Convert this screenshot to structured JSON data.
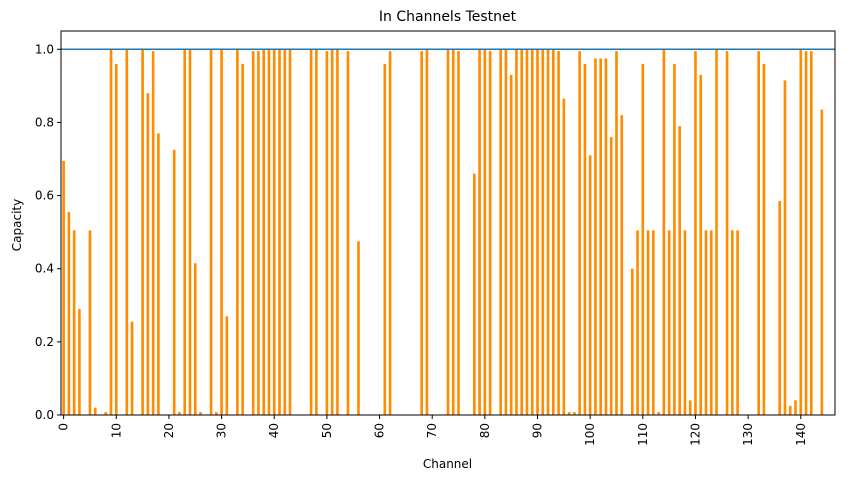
{
  "chart_data": {
    "type": "bar",
    "title": "In Channels Testnet",
    "xlabel": "Channel",
    "ylabel": "Capacity",
    "xlim": [
      0,
      147
    ],
    "ylim": [
      0,
      1.05
    ],
    "xticks": [
      "0",
      "10",
      "20",
      "30",
      "40",
      "50",
      "60",
      "70",
      "80",
      "90",
      "100",
      "110",
      "120",
      "130",
      "140"
    ],
    "yticks": [
      "0.0",
      "0.2",
      "0.4",
      "0.6",
      "0.8",
      "1.0"
    ],
    "hline": 1.0,
    "grid": false,
    "legend": "none",
    "colors": {
      "bars": "#ff8c00",
      "hline": "#1f77b4",
      "axes": "#000000"
    },
    "values": [
      0.695,
      0.555,
      0.505,
      0.29,
      0,
      0.505,
      0.02,
      0,
      0.008,
      1.0,
      0.96,
      0,
      1.0,
      0.255,
      0,
      1.0,
      0.88,
      0.995,
      0.77,
      0,
      0,
      0.725,
      0.008,
      1.0,
      1.0,
      0.415,
      0.008,
      0,
      1.0,
      0.008,
      1.0,
      0.27,
      0,
      1.0,
      0.96,
      0,
      0.995,
      0.995,
      1.0,
      1.0,
      1.0,
      1.0,
      1.0,
      1.0,
      0,
      0,
      0,
      1.0,
      1.0,
      0,
      0.995,
      1.0,
      1.0,
      0,
      0.995,
      0,
      0.475,
      0,
      0,
      0,
      0,
      0.96,
      0.995,
      0,
      0,
      0,
      0,
      0,
      0.995,
      1.0,
      0,
      0,
      0,
      1.0,
      1.0,
      0.995,
      0,
      0,
      0.66,
      1.0,
      1.0,
      0.995,
      0,
      1.0,
      1.0,
      0.93,
      1.0,
      1.0,
      1.0,
      1.0,
      1.0,
      1.0,
      1.0,
      1.0,
      0.995,
      0.865,
      0.008,
      0.008,
      0.995,
      0.96,
      0.71,
      0.975,
      0.975,
      0.975,
      0.76,
      0.995,
      0.82,
      0,
      0.4,
      0.505,
      0.96,
      0.505,
      0.505,
      0.008,
      1.0,
      0.505,
      0.96,
      0.79,
      0.505,
      0.04,
      0.995,
      0.93,
      0.505,
      0.505,
      1.0,
      0,
      0.995,
      0.505,
      0.505,
      0,
      0,
      0,
      0.995,
      0.96,
      0,
      0,
      0.585,
      0.915,
      0.025,
      0.04,
      1.0,
      0.995,
      0.995,
      0,
      0.835,
      0,
      0
    ]
  }
}
